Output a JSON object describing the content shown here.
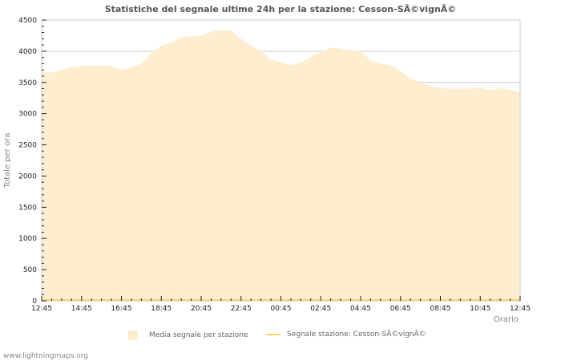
{
  "title": "Statistiche del segnale ultime 24h per la stazione: Cesson-SÃ©vignÃ©",
  "legend": {
    "area_label": "Media segnale per stazione",
    "line_label": "Segnale stazione: Cesson-SÃ©vignÃ©"
  },
  "credit": "www.lightningmaps.org",
  "colors": {
    "area_fill": "#feedcc",
    "line": "#fcd565",
    "gridline": "#cccccc",
    "axis": "#cccccc"
  },
  "chart_data": {
    "type": "area",
    "title": "Statistiche del segnale ultime 24h per la stazione: Cesson-SÃ©vignÃ©",
    "xlabel": "Orario",
    "ylabel": "Totale per ora",
    "ylim": [
      0,
      4500
    ],
    "yticks": [
      0,
      500,
      1000,
      1500,
      2000,
      2500,
      3000,
      3500,
      4000,
      4500
    ],
    "xtick_labels": [
      "12:45",
      "14:45",
      "16:45",
      "18:45",
      "20:45",
      "22:45",
      "00:45",
      "02:45",
      "04:45",
      "06:45",
      "08:45",
      "10:45",
      "12:45"
    ],
    "grid": true,
    "legend_position": "bottom",
    "x": [
      "12:45",
      "13:15",
      "13:45",
      "14:15",
      "14:45",
      "15:15",
      "15:45",
      "16:15",
      "16:45",
      "17:15",
      "17:45",
      "18:15",
      "18:45",
      "19:15",
      "19:45",
      "20:15",
      "20:45",
      "21:15",
      "21:45",
      "22:15",
      "22:45",
      "23:15",
      "23:45",
      "00:15",
      "00:45",
      "01:15",
      "01:45",
      "02:15",
      "02:45",
      "03:15",
      "03:45",
      "04:15",
      "04:45",
      "05:15",
      "05:45",
      "06:15",
      "06:45",
      "07:15",
      "07:45",
      "08:15",
      "08:45",
      "09:15",
      "09:45",
      "10:15",
      "10:45",
      "11:15",
      "11:45",
      "12:15",
      "12:45"
    ],
    "series": [
      {
        "name": "Media segnale per stazione",
        "type": "area",
        "values": [
          3670,
          3660,
          3700,
          3740,
          3760,
          3770,
          3775,
          3760,
          3700,
          3740,
          3800,
          3960,
          4090,
          4140,
          4230,
          4240,
          4250,
          4310,
          4350,
          4340,
          4200,
          4090,
          4000,
          3870,
          3820,
          3780,
          3820,
          3910,
          3990,
          4060,
          4040,
          4010,
          4010,
          3850,
          3800,
          3780,
          3680,
          3560,
          3500,
          3440,
          3410,
          3400,
          3400,
          3400,
          3420,
          3380,
          3410,
          3380,
          3345
        ]
      },
      {
        "name": "Segnale stazione: Cesson-SÃ©vignÃ©",
        "type": "line",
        "values": [
          0,
          0,
          0,
          0,
          0,
          0,
          0,
          0,
          0,
          0,
          0,
          0,
          0,
          0,
          0,
          0,
          0,
          0,
          0,
          0,
          0,
          0,
          0,
          0,
          0,
          0,
          0,
          0,
          0,
          0,
          0,
          0,
          0,
          0,
          0,
          0,
          0,
          0,
          0,
          0,
          0,
          0,
          0,
          0,
          0,
          0,
          0,
          0,
          0
        ]
      }
    ]
  }
}
